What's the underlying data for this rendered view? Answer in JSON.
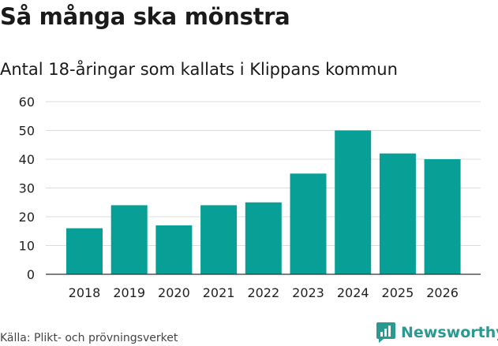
{
  "title": "Så många ska mönstra",
  "subtitle": "Antal 18-åringar som kallats i Klippans kommun",
  "source": "Källa: Plikt- och prövningsverket",
  "brand": {
    "name": "Newsworthy",
    "color": "#2a9a91"
  },
  "colors": {
    "bar": "#079f96",
    "grid": "#dcdcdc",
    "axis": "#333333"
  },
  "chart_data": {
    "type": "bar",
    "title": "Så många ska mönstra",
    "subtitle": "Antal 18-åringar som kallats i Klippans kommun",
    "categories": [
      "2018",
      "2019",
      "2020",
      "2021",
      "2022",
      "2023",
      "2024",
      "2025",
      "2026"
    ],
    "values": [
      16,
      24,
      17,
      24,
      25,
      35,
      50,
      42,
      40
    ],
    "ylim": [
      0,
      60
    ],
    "yticks": [
      0,
      10,
      20,
      30,
      40,
      50,
      60
    ],
    "xlabel": "",
    "ylabel": "",
    "grid": true
  }
}
